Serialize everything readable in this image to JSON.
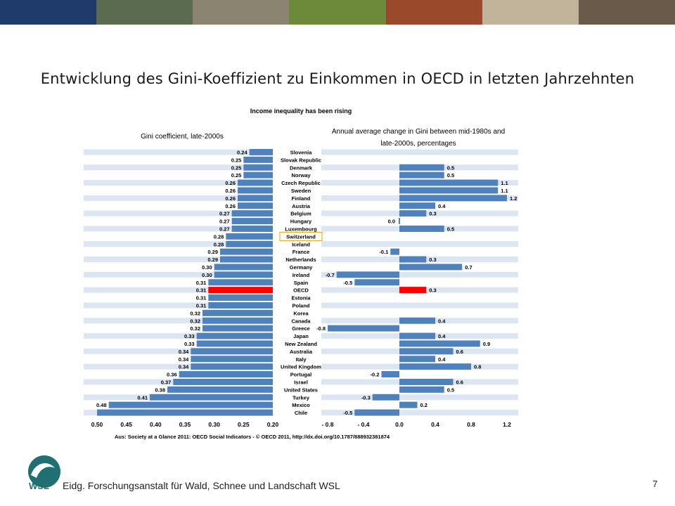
{
  "slide": {
    "title": "Entwicklung des Gini-Koeffizient zu Einkommen in OECD in letzten Jahrzehnten",
    "footer": "Eidg. Forschungsanstalt für Wald, Schnee und Landschaft WSL",
    "page_number": "7",
    "logo_text": "WSL"
  },
  "colors": {
    "bar": "#4f81bd",
    "highlight": "#ff0000",
    "stripe": "#dce6f2",
    "brand": "#1f6f73"
  },
  "banner": {
    "panels": [
      "#1f3b6b",
      "#5a6b50",
      "#8a8470",
      "#6d8a3a",
      "#9a4a2a",
      "#c2b49a",
      "#6a5a4a"
    ]
  },
  "chart_data": {
    "type": "bar",
    "title": "Income inequality has been rising",
    "source": "Aus: Society at a Glance 2011: OECD Social Indicators - © OECD 2011, http://dx.doi.org/10.1787/888932381874",
    "categories": [
      "Slovenia",
      "Slovak Republic",
      "Denmark",
      "Norway",
      "Czech Republic",
      "Sweden",
      "Finland",
      "Austria",
      "Belgium",
      "Hungary",
      "Luxembourg",
      "Switzerland",
      "Iceland",
      "France",
      "Netherlands",
      "Germany",
      "Ireland",
      "Spain",
      "OECD",
      "Estonia",
      "Poland",
      "Korea",
      "Canada",
      "Greece",
      "Japan",
      "New Zealand",
      "Australia",
      "Italy",
      "United Kingdom",
      "Portugal",
      "Israel",
      "United States",
      "Turkey",
      "Mexico",
      "Chile"
    ],
    "highlight_category": "OECD",
    "boxed_category": "Switzerland",
    "left": {
      "xlabel": "Gini coefficient, late-2000s",
      "xlim": [
        0.5,
        0.2
      ],
      "ticks": [
        "0.50",
        "0.45",
        "0.40",
        "0.35",
        "0.30",
        "0.25",
        "0.20"
      ],
      "values": [
        0.24,
        0.25,
        0.25,
        0.25,
        0.26,
        0.26,
        0.26,
        0.26,
        0.27,
        0.27,
        0.27,
        0.28,
        0.28,
        0.29,
        0.29,
        0.3,
        0.3,
        0.31,
        0.31,
        0.31,
        0.31,
        0.32,
        0.32,
        0.32,
        0.33,
        0.33,
        0.34,
        0.34,
        0.34,
        0.36,
        0.37,
        0.38,
        0.41,
        0.48,
        0.5
      ],
      "labels": [
        "0.24",
        "0.25",
        "0.25",
        "0.25",
        "0.26",
        "0.26",
        "0.26",
        "0.26",
        "0.27",
        "0.27",
        "0.27",
        "0.28",
        "0.28",
        "0.29",
        "0.29",
        "0.30",
        "0.30",
        "0.31",
        "0.31",
        "0.31",
        "0.31",
        "0.32",
        "0.32",
        "0.32",
        "0.33",
        "0.33",
        "0.34",
        "0.34",
        "0.34",
        "0.36",
        "0.37",
        "0.38",
        "0.41",
        "0.48",
        ""
      ]
    },
    "right": {
      "xlabel": "Annual average change in Gini between mid-1980s and late-2000s, percentages",
      "xlim": [
        -0.8,
        1.2
      ],
      "ticks": [
        "- 0.8",
        "- 0.4",
        "0.0",
        "0.4",
        "0.8",
        "1.2"
      ],
      "values": [
        null,
        null,
        0.5,
        0.5,
        1.1,
        1.1,
        1.2,
        0.4,
        0.3,
        0.0,
        0.5,
        null,
        null,
        -0.1,
        0.3,
        0.7,
        -0.7,
        -0.5,
        0.3,
        null,
        null,
        null,
        0.4,
        -0.8,
        0.4,
        0.9,
        0.6,
        0.4,
        0.8,
        -0.2,
        0.6,
        0.5,
        -0.3,
        0.2,
        -0.5
      ],
      "labels": [
        "",
        "",
        "0.5",
        "0.5",
        "1.1",
        "1.1",
        "1.2",
        "0.4",
        "0.3",
        "0.0",
        "0.5",
        "",
        "",
        "-0.1",
        "0.3",
        "0.7",
        "-0.7",
        "-0.5",
        "0.3",
        "",
        "",
        "",
        "0.4",
        "-0.8",
        "0.4",
        "0.9",
        "0.6",
        "0.4",
        "0.8",
        "-0.2",
        "0.6",
        "0.5",
        "-0.3",
        "0.2",
        "-0.5"
      ]
    }
  }
}
